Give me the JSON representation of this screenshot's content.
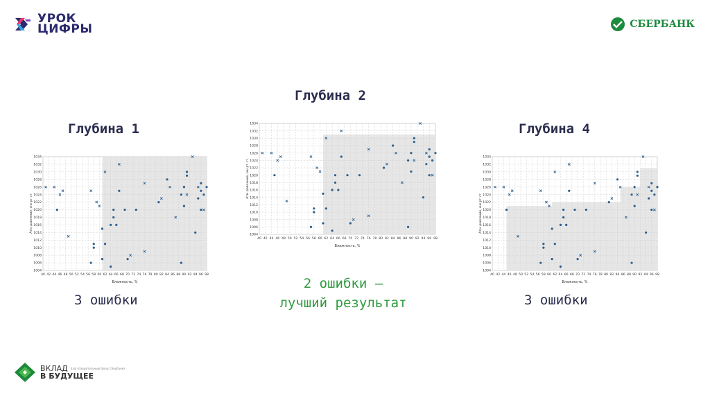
{
  "logos": {
    "urok": {
      "line1": "УРОК",
      "line2": "ЦИФРЫ"
    },
    "sber": {
      "name": "СБЕРБАНК"
    },
    "vklad": {
      "line1": "ВКЛАД",
      "line2": "В БУДУЩЕЕ",
      "tagline": "благотворительный фонд Сбербанка"
    }
  },
  "colors": {
    "heading": "#2b2d4e",
    "accent_green": "#2e9a3e",
    "point": "#2b5f8f",
    "region": "#e6e6e6"
  },
  "panels": [
    {
      "title": "Глубина 1",
      "result": "3 ошибки"
    },
    {
      "title": "Глубина 2",
      "result_line1": "2 ошибки —",
      "result_line2": "лучший результат"
    },
    {
      "title": "Глубина 4",
      "result": "3 ошибки"
    }
  ],
  "chart_data": [
    {
      "type": "scatter",
      "title": "",
      "xlabel": "Влажность, %",
      "ylabel": "Атм давление, мм рт ст",
      "xlim": [
        40,
        98
      ],
      "ylim": [
        1004,
        1034
      ],
      "xticks": [
        40,
        42,
        44,
        46,
        48,
        50,
        52,
        54,
        56,
        58,
        60,
        62,
        64,
        66,
        68,
        70,
        72,
        74,
        76,
        78,
        80,
        82,
        84,
        86,
        88,
        90,
        92,
        94,
        96,
        98
      ],
      "yticks": [
        1004,
        1006,
        1008,
        1010,
        1012,
        1014,
        1016,
        1018,
        1020,
        1022,
        1024,
        1026,
        1028,
        1030,
        1032,
        1034
      ],
      "regions": [
        {
          "x": [
            61,
            98
          ],
          "y": [
            1004,
            1034
          ]
        }
      ],
      "series": [
        {
          "marker": "x",
          "points": [
            [
              41,
              1026
            ],
            [
              44,
              1026
            ],
            [
              46,
              1024
            ],
            [
              47,
              1025
            ],
            [
              49,
              1013
            ],
            [
              57,
              1025
            ],
            [
              59,
              1022
            ],
            [
              60,
              1021
            ],
            [
              62,
              1030
            ],
            [
              67,
              1032
            ],
            [
              71,
              1008
            ],
            [
              76,
              1027
            ],
            [
              76,
              1009
            ],
            [
              82,
              1023
            ],
            [
              85,
              1026
            ],
            [
              87,
              1018
            ],
            [
              91,
              1024
            ],
            [
              93,
              1034
            ],
            [
              95,
              1026
            ],
            [
              97,
              1020
            ]
          ]
        },
        {
          "marker": "o",
          "points": [
            [
              45,
              1020
            ],
            [
              57,
              1006
            ],
            [
              58,
              1011
            ],
            [
              58,
              1010
            ],
            [
              61,
              1015
            ],
            [
              61,
              1007
            ],
            [
              62,
              1011
            ],
            [
              64,
              1005
            ],
            [
              64,
              1016
            ],
            [
              65,
              1020
            ],
            [
              65,
              1018
            ],
            [
              66,
              1016
            ],
            [
              67,
              1025
            ],
            [
              69,
              1020
            ],
            [
              70,
              1007
            ],
            [
              73,
              1020
            ],
            [
              81,
              1022
            ],
            [
              84,
              1028
            ],
            [
              89,
              1006
            ],
            [
              89,
              1024
            ],
            [
              90,
              1021
            ],
            [
              90,
              1026
            ],
            [
              91,
              1029
            ],
            [
              91,
              1030
            ],
            [
              94,
              1014
            ],
            [
              95,
              1023
            ],
            [
              96,
              1025
            ],
            [
              96,
              1020
            ],
            [
              96,
              1027
            ],
            [
              97,
              1024
            ],
            [
              98,
              1026
            ]
          ]
        }
      ]
    },
    {
      "type": "scatter",
      "title": "",
      "xlabel": "Влажность, %",
      "ylabel": "Атм давление, мм рт ст",
      "xlim": [
        40,
        98
      ],
      "ylim": [
        1004,
        1034
      ],
      "xticks": [
        40,
        42,
        44,
        46,
        48,
        50,
        52,
        54,
        56,
        58,
        60,
        62,
        64,
        66,
        68,
        70,
        72,
        74,
        76,
        78,
        80,
        82,
        84,
        86,
        88,
        90,
        92,
        94,
        96,
        98
      ],
      "yticks": [
        1004,
        1006,
        1008,
        1010,
        1012,
        1014,
        1016,
        1018,
        1020,
        1022,
        1024,
        1026,
        1028,
        1030,
        1032,
        1034
      ],
      "regions": [
        {
          "x": [
            61,
            98
          ],
          "y": [
            1004,
            1031
          ]
        }
      ],
      "series": [
        {
          "marker": "x",
          "points": [
            [
              41,
              1026
            ],
            [
              44,
              1026
            ],
            [
              46,
              1024
            ],
            [
              47,
              1025
            ],
            [
              49,
              1013
            ],
            [
              57,
              1025
            ],
            [
              59,
              1022
            ],
            [
              60,
              1021
            ],
            [
              62,
              1030
            ],
            [
              67,
              1032
            ],
            [
              71,
              1008
            ],
            [
              76,
              1027
            ],
            [
              76,
              1009
            ],
            [
              82,
              1023
            ],
            [
              85,
              1026
            ],
            [
              87,
              1018
            ],
            [
              91,
              1024
            ],
            [
              93,
              1034
            ],
            [
              95,
              1026
            ],
            [
              97,
              1020
            ]
          ]
        },
        {
          "marker": "o",
          "points": [
            [
              45,
              1020
            ],
            [
              57,
              1006
            ],
            [
              58,
              1011
            ],
            [
              58,
              1010
            ],
            [
              61,
              1015
            ],
            [
              61,
              1007
            ],
            [
              62,
              1011
            ],
            [
              64,
              1005
            ],
            [
              64,
              1016
            ],
            [
              65,
              1020
            ],
            [
              65,
              1018
            ],
            [
              66,
              1016
            ],
            [
              67,
              1025
            ],
            [
              69,
              1020
            ],
            [
              70,
              1007
            ],
            [
              73,
              1020
            ],
            [
              81,
              1022
            ],
            [
              84,
              1028
            ],
            [
              89,
              1006
            ],
            [
              89,
              1024
            ],
            [
              90,
              1021
            ],
            [
              90,
              1026
            ],
            [
              91,
              1029
            ],
            [
              91,
              1030
            ],
            [
              94,
              1014
            ],
            [
              95,
              1023
            ],
            [
              96,
              1025
            ],
            [
              96,
              1020
            ],
            [
              96,
              1027
            ],
            [
              97,
              1024
            ],
            [
              98,
              1026
            ]
          ]
        }
      ]
    },
    {
      "type": "scatter",
      "title": "",
      "xlabel": "Влажность, %",
      "ylabel": "Атм давление, мм рт ст",
      "xlim": [
        40,
        98
      ],
      "ylim": [
        1004,
        1034
      ],
      "xticks": [
        40,
        42,
        44,
        46,
        48,
        50,
        52,
        54,
        56,
        58,
        60,
        62,
        64,
        66,
        68,
        70,
        72,
        74,
        76,
        78,
        80,
        82,
        84,
        86,
        88,
        90,
        92,
        94,
        96,
        98
      ],
      "yticks": [
        1004,
        1006,
        1008,
        1010,
        1012,
        1014,
        1016,
        1018,
        1020,
        1022,
        1024,
        1026,
        1028,
        1030,
        1032,
        1034
      ],
      "regions": [
        {
          "x": [
            45,
            98
          ],
          "y": [
            1004,
            1021
          ]
        },
        {
          "x": [
            55,
            98
          ],
          "y": [
            1004,
            1011
          ]
        },
        {
          "x": [
            61,
            98
          ],
          "y": [
            1004,
            1022
          ]
        },
        {
          "x": [
            85,
            98
          ],
          "y": [
            1004,
            1026
          ]
        },
        {
          "x": [
            92,
            98
          ],
          "y": [
            1004,
            1031
          ]
        }
      ],
      "series": [
        {
          "marker": "x",
          "points": [
            [
              41,
              1026
            ],
            [
              44,
              1026
            ],
            [
              46,
              1024
            ],
            [
              47,
              1025
            ],
            [
              49,
              1013
            ],
            [
              57,
              1025
            ],
            [
              59,
              1022
            ],
            [
              60,
              1021
            ],
            [
              62,
              1030
            ],
            [
              67,
              1032
            ],
            [
              71,
              1008
            ],
            [
              76,
              1027
            ],
            [
              76,
              1009
            ],
            [
              82,
              1023
            ],
            [
              85,
              1026
            ],
            [
              87,
              1018
            ],
            [
              91,
              1024
            ],
            [
              93,
              1034
            ],
            [
              95,
              1026
            ],
            [
              97,
              1020
            ]
          ]
        },
        {
          "marker": "o",
          "points": [
            [
              45,
              1020
            ],
            [
              57,
              1006
            ],
            [
              58,
              1011
            ],
            [
              58,
              1010
            ],
            [
              61,
              1015
            ],
            [
              61,
              1007
            ],
            [
              62,
              1011
            ],
            [
              64,
              1005
            ],
            [
              64,
              1016
            ],
            [
              65,
              1020
            ],
            [
              65,
              1018
            ],
            [
              66,
              1016
            ],
            [
              67,
              1025
            ],
            [
              69,
              1020
            ],
            [
              70,
              1007
            ],
            [
              73,
              1020
            ],
            [
              81,
              1022
            ],
            [
              84,
              1028
            ],
            [
              89,
              1006
            ],
            [
              89,
              1024
            ],
            [
              90,
              1021
            ],
            [
              90,
              1026
            ],
            [
              91,
              1029
            ],
            [
              91,
              1030
            ],
            [
              94,
              1014
            ],
            [
              95,
              1023
            ],
            [
              96,
              1025
            ],
            [
              96,
              1020
            ],
            [
              96,
              1027
            ],
            [
              97,
              1024
            ],
            [
              98,
              1026
            ]
          ]
        }
      ]
    }
  ]
}
